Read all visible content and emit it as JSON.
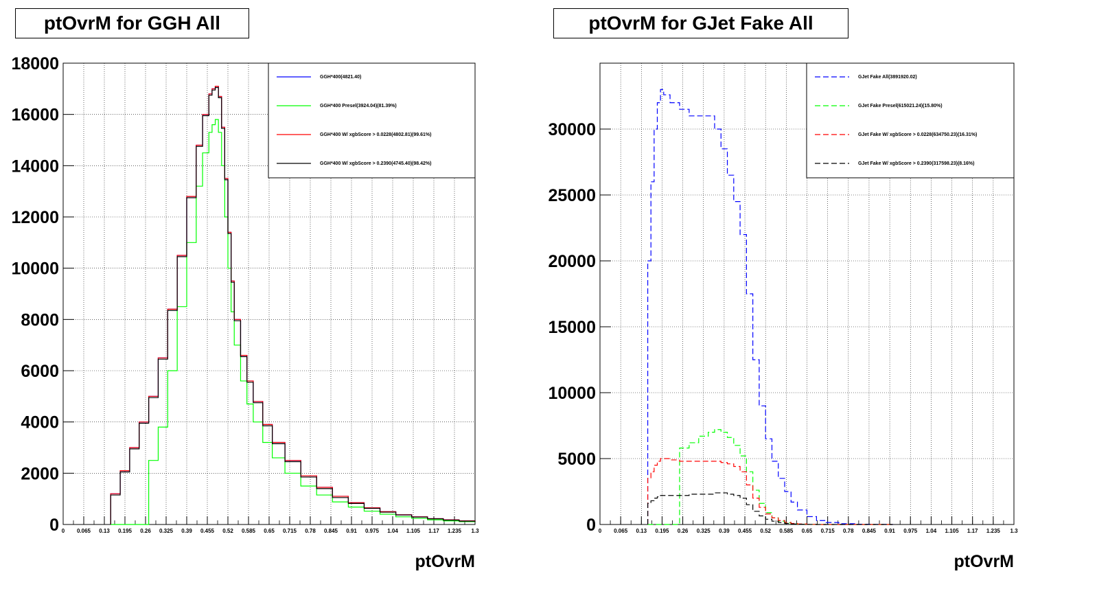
{
  "panels": {
    "left": {
      "title": "ptOvrM for GGH All"
    },
    "right": {
      "title": "ptOvrM for GJet Fake All"
    }
  },
  "colors": {
    "blue": "#0000ff",
    "green": "#00ff00",
    "red": "#ff0000",
    "black": "#000000",
    "grid": "#000000"
  },
  "chart_data": [
    {
      "type": "line",
      "title": "ptOvrM for GGH All",
      "xlabel": "ptOvrM",
      "ylabel": "",
      "xlim": [
        0,
        1.3
      ],
      "ylim": [
        0,
        18000
      ],
      "yticks": [
        "0",
        "2000",
        "4000",
        "6000",
        "8000",
        "10000",
        "12000",
        "14000",
        "16000",
        "18000"
      ],
      "xticks": [
        "0",
        "0.065",
        "0.13",
        "0.195",
        "0.26",
        "0.325",
        "0.39",
        "0.455",
        "0.52",
        "0.585",
        "0.65",
        "0.715",
        "0.78",
        "0.845",
        "0.91",
        "0.975",
        "1.04",
        "1.105",
        "1.17",
        "1.235",
        "1.3"
      ],
      "grid": true,
      "legend_position": "top-right",
      "line_style": "solid",
      "x": [
        0.15,
        0.18,
        0.21,
        0.24,
        0.27,
        0.3,
        0.33,
        0.36,
        0.39,
        0.42,
        0.44,
        0.46,
        0.47,
        0.48,
        0.49,
        0.5,
        0.51,
        0.52,
        0.53,
        0.54,
        0.56,
        0.58,
        0.6,
        0.63,
        0.66,
        0.7,
        0.75,
        0.8,
        0.85,
        0.9,
        0.95,
        1.0,
        1.05,
        1.1,
        1.15,
        1.2,
        1.25,
        1.3
      ],
      "series": [
        {
          "name": "GGH*400(4821.40)",
          "color": "#0000ff",
          "values": [
            1200,
            2100,
            3000,
            4000,
            5000,
            6500,
            8400,
            10500,
            12800,
            14800,
            16000,
            16800,
            17000,
            17100,
            16700,
            15500,
            13500,
            11400,
            9500,
            8000,
            6600,
            5600,
            4800,
            3900,
            3200,
            2500,
            1900,
            1450,
            1100,
            850,
            650,
            500,
            380,
            300,
            230,
            180,
            140,
            110
          ]
        },
        {
          "name": "GGH*400 Presel(3924.04)(81.39%)",
          "color": "#00ff00",
          "values": [
            0,
            0,
            0,
            0,
            2500,
            3800,
            6000,
            8500,
            11000,
            13200,
            14500,
            15300,
            15600,
            15800,
            15300,
            14000,
            12000,
            10000,
            8300,
            7000,
            5600,
            4700,
            4000,
            3200,
            2600,
            2000,
            1500,
            1150,
            880,
            680,
            520,
            400,
            300,
            240,
            180,
            140,
            110,
            90
          ]
        },
        {
          "name": "GGH*400 W/ xgbScore > 0.0228(4802.81)(99.61%)",
          "color": "#ff0000",
          "values": [
            1200,
            2100,
            3000,
            4000,
            5000,
            6500,
            8400,
            10500,
            12800,
            14800,
            16000,
            16800,
            17000,
            17100,
            16700,
            15500,
            13500,
            11400,
            9500,
            8000,
            6600,
            5600,
            4800,
            3900,
            3200,
            2500,
            1900,
            1450,
            1100,
            850,
            650,
            500,
            380,
            300,
            230,
            180,
            140,
            110
          ]
        },
        {
          "name": "GGH*400 W/ xgbScore > 0.2390(4745.40)(98.42%)",
          "color": "#000000",
          "values": [
            1150,
            2050,
            2950,
            3950,
            4950,
            6450,
            8350,
            10450,
            12750,
            14750,
            15950,
            16750,
            16950,
            17050,
            16650,
            15450,
            13450,
            11350,
            9450,
            7950,
            6550,
            5550,
            4750,
            3850,
            3150,
            2450,
            1850,
            1400,
            1050,
            820,
            630,
            480,
            370,
            290,
            220,
            170,
            130,
            100
          ]
        }
      ]
    },
    {
      "type": "line",
      "title": "ptOvrM for GJet Fake All",
      "xlabel": "ptOvrM",
      "ylabel": "",
      "xlim": [
        0,
        1.3
      ],
      "ylim": [
        0,
        35000
      ],
      "yticks": [
        "0",
        "5000",
        "10000",
        "15000",
        "20000",
        "25000",
        "30000"
      ],
      "ytick_values": [
        0,
        5000,
        10000,
        15000,
        20000,
        25000,
        30000
      ],
      "xticks": [
        "0",
        "0.065",
        "0.13",
        "0.195",
        "0.26",
        "0.325",
        "0.39",
        "0.455",
        "0.52",
        "0.585",
        "0.65",
        "0.715",
        "0.78",
        "0.845",
        "0.91",
        "0.975",
        "1.04",
        "1.105",
        "1.17",
        "1.235",
        "1.3"
      ],
      "grid": true,
      "legend_position": "top-right",
      "line_style": "dashed",
      "x": [
        0.15,
        0.16,
        0.17,
        0.18,
        0.19,
        0.2,
        0.22,
        0.25,
        0.28,
        0.31,
        0.34,
        0.36,
        0.38,
        0.4,
        0.42,
        0.44,
        0.46,
        0.48,
        0.5,
        0.52,
        0.54,
        0.56,
        0.58,
        0.6,
        0.62,
        0.65,
        0.68,
        0.71,
        0.75,
        0.8,
        0.85,
        0.9
      ],
      "series": [
        {
          "name": "GJet Fake All(3891920.02)",
          "color": "#0000ff",
          "values": [
            20000,
            26000,
            30000,
            32000,
            33000,
            32600,
            32000,
            31500,
            31000,
            31000,
            31000,
            30000,
            28500,
            26500,
            24500,
            22000,
            17500,
            12500,
            9000,
            6500,
            4800,
            3500,
            2500,
            1700,
            1100,
            600,
            300,
            150,
            60,
            20,
            5,
            0
          ]
        },
        {
          "name": "GJet Fake Presel(615021.24)(15.80%)",
          "color": "#00ff00",
          "values": [
            0,
            0,
            0,
            0,
            0,
            0,
            0,
            5800,
            6200,
            6700,
            7000,
            7200,
            7000,
            6600,
            6000,
            5200,
            4000,
            2600,
            1600,
            900,
            500,
            250,
            120,
            60,
            30,
            10,
            0,
            0,
            0,
            0,
            0,
            0
          ]
        },
        {
          "name": "GJet Fake W/ xgbScore > 0.0228(634750.23)(16.31%)",
          "color": "#ff0000",
          "values": [
            3500,
            4000,
            4500,
            4800,
            5000,
            5000,
            4900,
            4800,
            4800,
            4800,
            4800,
            4800,
            4700,
            4600,
            4400,
            4000,
            3000,
            2000,
            1300,
            800,
            500,
            300,
            160,
            80,
            40,
            10,
            0,
            0,
            0,
            0,
            0,
            0
          ]
        },
        {
          "name": "GJet Fake W/ xgbScore > 0.2390(317598.23)(8.16%)",
          "color": "#000000",
          "values": [
            1600,
            1800,
            2000,
            2100,
            2200,
            2200,
            2200,
            2200,
            2300,
            2300,
            2300,
            2400,
            2400,
            2300,
            2200,
            2000,
            1500,
            1000,
            650,
            400,
            250,
            150,
            80,
            40,
            20,
            5,
            0,
            0,
            0,
            0,
            0,
            0
          ]
        }
      ]
    }
  ]
}
